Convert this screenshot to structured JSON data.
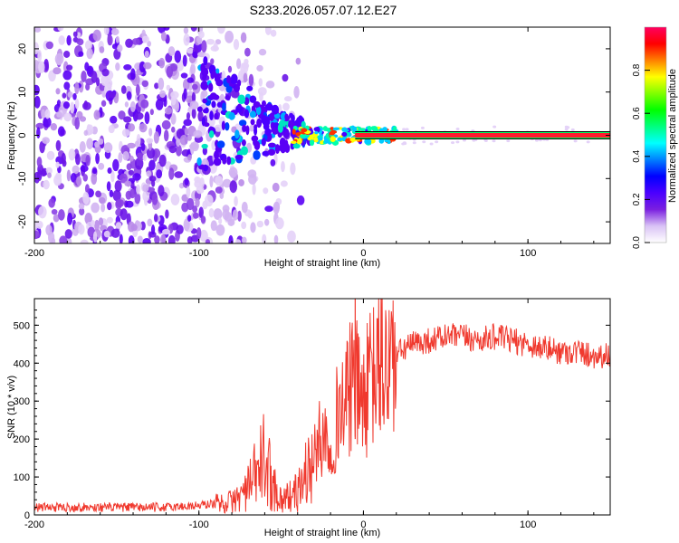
{
  "title": "S233.2026.057.07.12.E27",
  "chart_data": [
    {
      "type": "heatmap",
      "name": "frequency-vs-height",
      "title": "S233.2026.057.07.12.E27",
      "xlabel": "Height of straight line (km)",
      "ylabel": "Frequency (Hz)",
      "xlim": [
        -200,
        150
      ],
      "ylim": [
        -25,
        25
      ],
      "xticks": [
        "-200",
        "-100",
        "0",
        "100"
      ],
      "yticks": [
        "20",
        "10",
        "0",
        "-10",
        "-20"
      ],
      "colorbar": {
        "label": "Normalized spectral amplitude",
        "range": [
          0.0,
          1.0
        ],
        "ticks": [
          "0.0",
          "0.2",
          "0.4",
          "0.6",
          "0.8"
        ],
        "colors": [
          "#ffffff",
          "#d9c2f5",
          "#7a1fe0",
          "#4a00ff",
          "#0000ff",
          "#0080ff",
          "#00ffff",
          "#00ff80",
          "#00ff00",
          "#80ff00",
          "#ffff00",
          "#ff8000",
          "#ff0000",
          "#ff0060"
        ]
      },
      "description_data": {
        "scatter_x_range": [
          -200,
          -40
        ],
        "convergence_x": -40,
        "carrier_frequency_hz": 0,
        "carrier_x_range": [
          0,
          150
        ]
      }
    },
    {
      "type": "line",
      "name": "snr-vs-height",
      "xlabel": "Height of straight line (km)",
      "ylabel": "SNR (10 * v/v)",
      "xlim": [
        -200,
        150
      ],
      "ylim": [
        0,
        570
      ],
      "xticks": [
        "-200",
        "-100",
        "0",
        "100"
      ],
      "yticks": [
        "0",
        "100",
        "200",
        "300",
        "400",
        "500"
      ],
      "series": [
        {
          "name": "SNR",
          "color": "#f0392e",
          "x": [
            -200,
            -180,
            -160,
            -140,
            -120,
            -100,
            -90,
            -80,
            -75,
            -70,
            -65,
            -60,
            -55,
            -50,
            -45,
            -40,
            -35,
            -30,
            -25,
            -20,
            -15,
            -10,
            -7,
            -5,
            -2,
            0,
            5,
            10,
            15,
            20,
            25,
            30,
            40,
            50,
            60,
            70,
            80,
            90,
            100,
            110,
            120,
            130,
            140,
            150
          ],
          "values": [
            20,
            20,
            20,
            20,
            20,
            25,
            30,
            35,
            50,
            70,
            110,
            150,
            80,
            40,
            50,
            60,
            110,
            150,
            220,
            180,
            280,
            300,
            350,
            340,
            320,
            300,
            360,
            390,
            400,
            420,
            440,
            450,
            460,
            470,
            470,
            460,
            470,
            460,
            450,
            440,
            430,
            430,
            420,
            420
          ]
        }
      ]
    }
  ]
}
